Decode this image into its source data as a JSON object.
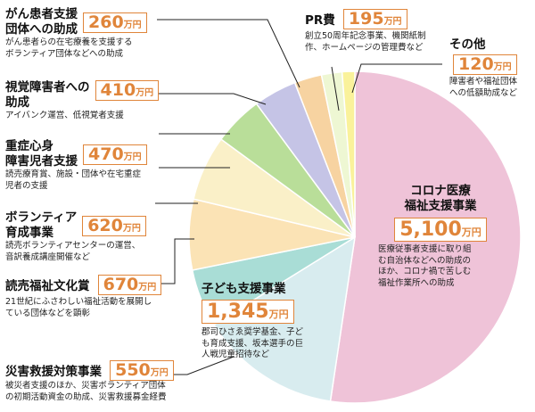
{
  "chart_data": {
    "type": "pie",
    "unit": "万円",
    "categories": [
      "コロナ医療福祉支援事業",
      "子ども支援事業",
      "災害救援対策事業",
      "読売福祉文化賞",
      "ボランティア育成事業",
      "重症心身障害児者支援",
      "視覚障害者への助成",
      "がん患者支援団体への助成",
      "PR費",
      "その他"
    ],
    "values": [
      5100,
      1345,
      550,
      670,
      620,
      470,
      410,
      260,
      195,
      120
    ],
    "colors": [
      "#efc3d8",
      "#d8ecef",
      "#a9ddd6",
      "#fbe3b5",
      "#faf0c8",
      "#b9de99",
      "#c5c4e6",
      "#f7d3a1",
      "#eef7d3",
      "#faf29b",
      "#e9e9e9"
    ]
  },
  "labels": {
    "corona": {
      "name_line1": "コロナ医療",
      "name_line2": "福祉支援事業",
      "amount": "5,100",
      "unit": "万円",
      "desc": [
        "医療従事者支援に取り組",
        "む自治体などへの助成の",
        "ほか、コロナ禍で苦しむ",
        "福祉作業所への助成"
      ]
    },
    "kodomo": {
      "name": "子ども支援事業",
      "amount": "1,345",
      "unit": "万円",
      "desc": [
        "郡司ひさゑ奨学基金、子ど",
        "も育成支援、坂本選手の巨",
        "人戦児童招待など"
      ]
    },
    "saigai": {
      "name": "災害救援対策事業",
      "amount": "550",
      "unit": "万円",
      "desc": [
        "被災者支援のほか、災害ボランティア団体",
        "の初期活動資金の助成、災害救援募金経費"
      ]
    },
    "bunka": {
      "name": "読売福祉文化賞",
      "amount": "670",
      "unit": "万円",
      "desc": [
        "21世紀にふさわしい福祉活動を展開し",
        "ている団体などを顕彰"
      ]
    },
    "volunteer": {
      "name_line1": "ボランティア",
      "name_line2": "育成事業",
      "amount": "620",
      "unit": "万円",
      "desc": [
        "読売ボランティアセンターの運営、",
        "音訳養成講座開催など"
      ]
    },
    "jushin": {
      "name_line1": "重症心身",
      "name_line2": "障害児者支援",
      "amount": "470",
      "unit": "万円",
      "desc": [
        "読売療育賞、施設・団体や在宅重症",
        "児者の支援"
      ]
    },
    "shikaku": {
      "name_line1": "視覚障害者への",
      "name_line2": "助成",
      "amount": "410",
      "unit": "万円",
      "desc": [
        "アイバンク運営、低視覚者支援"
      ]
    },
    "gan": {
      "name_line1": "がん患者支援",
      "name_line2": "団体への助成",
      "amount": "260",
      "unit": "万円",
      "desc": [
        "がん患者らの在宅療養を支援する",
        "ボランティア団体などへの助成"
      ]
    },
    "pr": {
      "name": "PR費",
      "amount": "195",
      "unit": "万円",
      "desc": [
        "創立50周年記念事業、機関紙制",
        "作、ホームページの管理費など"
      ]
    },
    "sonota": {
      "name": "その他",
      "amount": "120",
      "unit": "万円",
      "desc": [
        "障害者や福祉団体",
        "への低額助成など"
      ]
    }
  }
}
